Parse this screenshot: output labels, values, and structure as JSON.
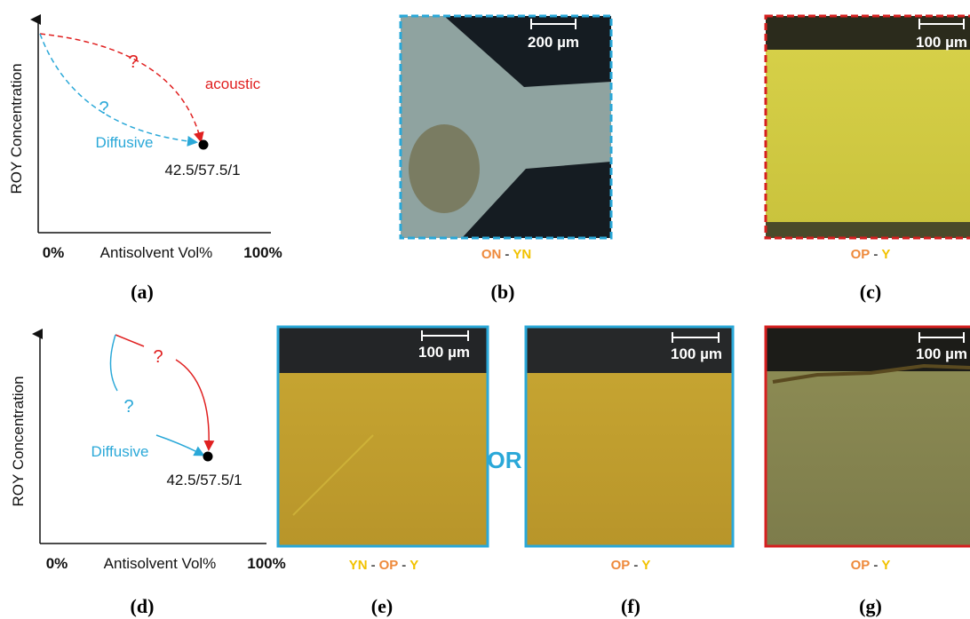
{
  "panels": [
    {
      "label": "(a)",
      "y_axis_label": "ROY Concentration",
      "x_start": "0%",
      "x_axis_label": "Antisolvent Vol%",
      "x_end": "100%",
      "question_red": "?",
      "question_blue": "?",
      "acoustic": "acoustic",
      "diffusive": "Diffusive",
      "point_label": "42.5/57.5/1"
    },
    {
      "label": "(b)",
      "scale_bar": "200 µm",
      "caption": [
        {
          "text": "ON",
          "color": "#ee8a3c"
        },
        {
          "text": "-",
          "color": "#555555"
        },
        {
          "text": "YN",
          "color": "#f2c200"
        }
      ]
    },
    {
      "label": "(c)",
      "scale_bar": "100 µm",
      "caption": [
        {
          "text": "OP",
          "color": "#ee8a3c"
        },
        {
          "text": "-",
          "color": "#555555"
        },
        {
          "text": "Y",
          "color": "#f2c200"
        }
      ]
    },
    {
      "label": "(d)",
      "y_axis_label": "ROY Concentration",
      "x_start": "0%",
      "x_axis_label": "Antisolvent Vol%",
      "x_end": "100%",
      "question_red": "?",
      "question_blue": "?",
      "diffusive": "Diffusive",
      "point_label": "42.5/57.5/1"
    },
    {
      "label": "(e)",
      "scale_bar": "100 µm",
      "caption": [
        {
          "text": "YN",
          "color": "#f2c200"
        },
        {
          "text": "-",
          "color": "#555555"
        },
        {
          "text": "OP",
          "color": "#ee8a3c"
        },
        {
          "text": "-",
          "color": "#555555"
        },
        {
          "text": "Y",
          "color": "#f2c200"
        }
      ]
    },
    {
      "label": "(f)",
      "scale_bar": "100 µm",
      "caption": [
        {
          "text": "OP",
          "color": "#ee8a3c"
        },
        {
          "text": "-",
          "color": "#555555"
        },
        {
          "text": "Y",
          "color": "#f2c200"
        }
      ]
    },
    {
      "label": "(g)",
      "scale_bar": "100 µm",
      "caption": [
        {
          "text": "OP",
          "color": "#ee8a3c"
        },
        {
          "text": "-",
          "color": "#555555"
        },
        {
          "text": "Y",
          "color": "#f2c200"
        }
      ]
    }
  ],
  "or_label": "OR"
}
